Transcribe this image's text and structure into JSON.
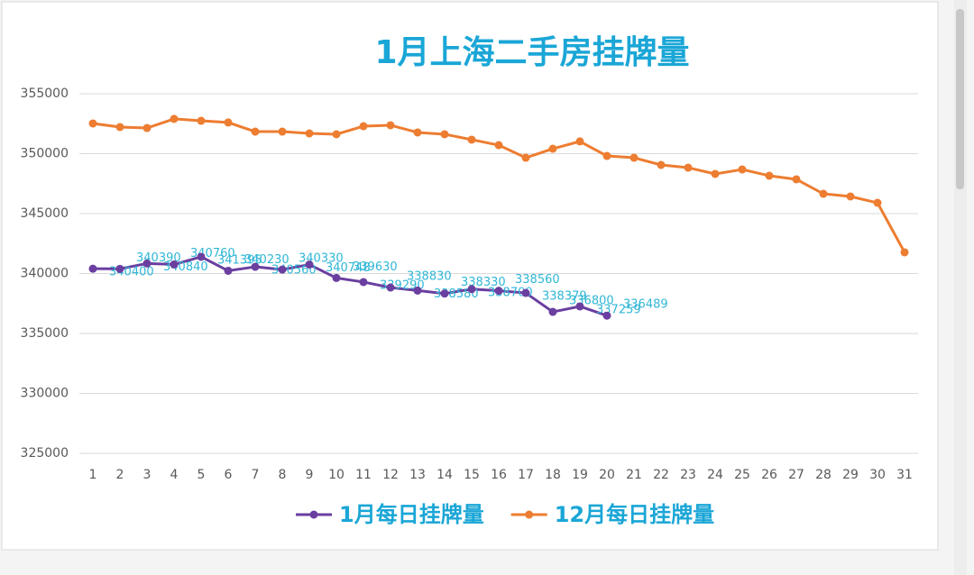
{
  "chart_data": {
    "type": "line",
    "title": "1月上海二手房挂牌量",
    "categories": [
      "1",
      "2",
      "3",
      "4",
      "5",
      "6",
      "7",
      "8",
      "9",
      "10",
      "11",
      "12",
      "13",
      "14",
      "15",
      "16",
      "17",
      "18",
      "19",
      "20",
      "21",
      "22",
      "23",
      "24",
      "25",
      "26",
      "27",
      "28",
      "29",
      "30",
      "31"
    ],
    "series": [
      {
        "name": "1月每日挂牌量",
        "color": "#6a3fa0",
        "data_labels": true,
        "values": [
          340400,
          340390,
          340840,
          340760,
          341395,
          340230,
          340560,
          340330,
          340748,
          339630,
          339290,
          338830,
          338580,
          338330,
          338700,
          338560,
          338379,
          336800,
          337259,
          336489,
          null,
          null,
          null,
          null,
          null,
          null,
          null,
          null,
          null,
          null,
          null
        ]
      },
      {
        "name": "12月每日挂牌量",
        "color": "#ed7d31",
        "data_labels": false,
        "values": [
          352520,
          352220,
          352140,
          352900,
          352740,
          352600,
          351840,
          351840,
          351690,
          351620,
          352290,
          352370,
          351770,
          351620,
          351170,
          350710,
          349660,
          350410,
          351020,
          349810,
          349660,
          349060,
          348830,
          348310,
          348680,
          348160,
          347860,
          346650,
          346430,
          345900,
          341770
        ]
      }
    ],
    "ylim": [
      325000,
      355000
    ],
    "yticks": [
      325000,
      330000,
      335000,
      340000,
      345000,
      350000,
      355000
    ],
    "grid": true,
    "legend": "bottom"
  }
}
